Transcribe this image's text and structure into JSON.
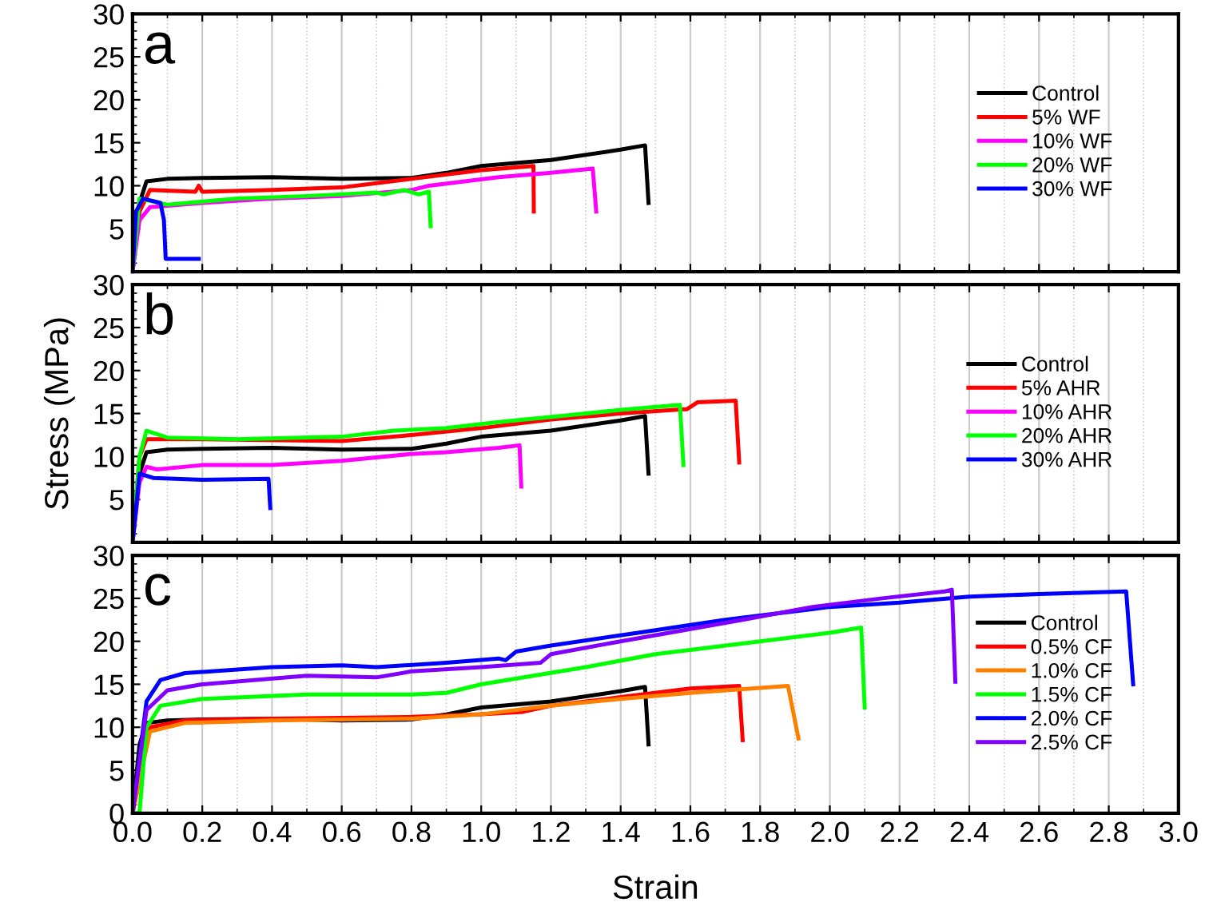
{
  "chart_data": [
    {
      "type": "line",
      "title": "a",
      "xlim": [
        0,
        3.0
      ],
      "ylim": [
        0,
        30
      ],
      "xticks": [
        0.0,
        0.2,
        0.4,
        0.6,
        0.8,
        1.0,
        1.2,
        1.4,
        1.6,
        1.8,
        2.0,
        2.2,
        2.4,
        2.6,
        2.8,
        3.0
      ],
      "yticks": [
        {
          "value": 0,
          "label": null
        },
        5,
        10,
        15,
        20,
        25,
        30
      ],
      "tick_labels": "y",
      "grid": "x",
      "legend": "right",
      "marker": "none",
      "line_style": "solid",
      "series": [
        {
          "name": "Control",
          "color": "#000000",
          "x": [
            0,
            0.02,
            0.04,
            0.1,
            0.2,
            0.4,
            0.6,
            0.8,
            0.9,
            1.0,
            1.2,
            1.4,
            1.47,
            1.48
          ],
          "values": [
            0,
            8,
            10.5,
            10.8,
            10.9,
            11.0,
            10.8,
            10.9,
            11.5,
            12.3,
            13.0,
            14.2,
            14.7,
            8
          ]
        },
        {
          "name": "5% WF",
          "color": "#ff0000",
          "x": [
            0,
            0.02,
            0.05,
            0.18,
            0.19,
            0.2,
            0.4,
            0.6,
            0.7,
            0.8,
            1.0,
            1.15,
            1.151
          ],
          "values": [
            0,
            7,
            9.5,
            9.3,
            10,
            9.3,
            9.5,
            9.8,
            10.3,
            10.8,
            11.8,
            12.3,
            7
          ]
        },
        {
          "name": "10% WF",
          "color": "#ff00ff",
          "x": [
            0,
            0.02,
            0.05,
            0.2,
            0.4,
            0.6,
            0.8,
            0.85,
            1.05,
            1.2,
            1.32,
            1.33
          ],
          "values": [
            0,
            6,
            7.5,
            8.0,
            8.5,
            8.8,
            9.5,
            10.0,
            11.0,
            11.5,
            12.0,
            7
          ]
        },
        {
          "name": "20% WF",
          "color": "#00ff00",
          "x": [
            0,
            0.02,
            0.1,
            0.3,
            0.5,
            0.7,
            0.72,
            0.78,
            0.82,
            0.85,
            0.855
          ],
          "values": [
            0,
            8.5,
            7.8,
            8.5,
            8.8,
            9.2,
            9.0,
            9.5,
            9.0,
            9.3,
            5.3
          ]
        },
        {
          "name": "30% WF",
          "color": "#0000ff",
          "x": [
            0,
            0.01,
            0.03,
            0.08,
            0.09,
            0.095,
            0.19
          ],
          "values": [
            0,
            7,
            8.5,
            8.0,
            6.0,
            1.5,
            1.5
          ]
        }
      ]
    },
    {
      "type": "line",
      "title": "b",
      "ylabel": "Stress (MPa)",
      "xlim": [
        0,
        3.0
      ],
      "ylim": [
        0,
        30
      ],
      "xticks": [
        0.0,
        0.2,
        0.4,
        0.6,
        0.8,
        1.0,
        1.2,
        1.4,
        1.6,
        1.8,
        2.0,
        2.2,
        2.4,
        2.6,
        2.8,
        3.0
      ],
      "yticks": [
        {
          "value": 0,
          "label": null
        },
        5,
        10,
        15,
        20,
        25,
        30
      ],
      "tick_labels": "y",
      "grid": "x",
      "legend": "right",
      "marker": "none",
      "line_style": "solid",
      "series": [
        {
          "name": "Control",
          "color": "#000000",
          "x": [
            0,
            0.02,
            0.04,
            0.1,
            0.2,
            0.4,
            0.6,
            0.8,
            0.9,
            1.0,
            1.2,
            1.4,
            1.47,
            1.48
          ],
          "values": [
            0,
            8,
            10.5,
            10.8,
            10.9,
            11.0,
            10.8,
            10.9,
            11.5,
            12.3,
            13.0,
            14.2,
            14.7,
            8
          ]
        },
        {
          "name": "5% AHR",
          "color": "#ff0000",
          "x": [
            0,
            0.02,
            0.04,
            0.2,
            0.6,
            0.8,
            1.0,
            1.2,
            1.4,
            1.58,
            1.59,
            1.62,
            1.73,
            1.74
          ],
          "values": [
            0,
            10,
            12,
            12,
            11.8,
            12.5,
            13.3,
            14.3,
            15.0,
            15.5,
            15.5,
            16.3,
            16.5,
            9.3
          ]
        },
        {
          "name": "10% AHR",
          "color": "#ff00ff",
          "x": [
            0,
            0.02,
            0.04,
            0.07,
            0.2,
            0.4,
            0.6,
            0.8,
            0.9,
            1.05,
            1.11,
            1.115
          ],
          "values": [
            0,
            7,
            8.8,
            8.5,
            9.0,
            9.0,
            9.5,
            10.3,
            10.5,
            11.0,
            11.3,
            6.5
          ]
        },
        {
          "name": "20% AHR",
          "color": "#00ff00",
          "x": [
            0,
            0.02,
            0.04,
            0.1,
            0.3,
            0.6,
            0.75,
            0.9,
            1.05,
            1.25,
            1.42,
            1.57,
            1.58
          ],
          "values": [
            0,
            10,
            13.0,
            12.2,
            12.0,
            12.3,
            13.0,
            13.3,
            14.0,
            14.8,
            15.5,
            16.0,
            9
          ]
        },
        {
          "name": "30% AHR",
          "color": "#0000ff",
          "x": [
            0,
            0.02,
            0.06,
            0.2,
            0.39,
            0.395
          ],
          "values": [
            0,
            8.0,
            7.5,
            7.3,
            7.4,
            4
          ]
        }
      ]
    },
    {
      "type": "line",
      "title": "c",
      "xlabel": "Strain",
      "xlim": [
        0,
        3.0
      ],
      "ylim": [
        0,
        30
      ],
      "xticks": [
        {
          "value": 0,
          "label": "0.0"
        },
        0.2,
        0.4,
        0.6,
        0.8,
        {
          "value": 1,
          "label": "1.0"
        },
        1.2,
        1.4,
        1.6,
        1.8,
        {
          "value": 2,
          "label": "2.0"
        },
        2.2,
        2.4,
        2.6,
        2.8,
        {
          "value": 3,
          "label": "3.0"
        }
      ],
      "yticks": [
        0,
        5,
        10,
        15,
        20,
        25,
        30
      ],
      "grid": "x",
      "legend": "right",
      "marker": "none",
      "line_style": "solid",
      "series": [
        {
          "name": "Control",
          "color": "#000000",
          "x": [
            0,
            0.02,
            0.04,
            0.1,
            0.2,
            0.4,
            0.6,
            0.8,
            0.9,
            1.0,
            1.2,
            1.4,
            1.47,
            1.48
          ],
          "values": [
            0,
            8,
            10.5,
            10.8,
            10.9,
            11.0,
            10.8,
            10.9,
            11.5,
            12.3,
            13.0,
            14.2,
            14.7,
            8
          ]
        },
        {
          "name": "0.5% CF",
          "color": "#ff0000",
          "x": [
            0,
            0.05,
            0.15,
            0.4,
            0.8,
            1.0,
            1.12,
            1.2,
            1.4,
            1.6,
            1.74,
            1.75
          ],
          "values": [
            0,
            10,
            10.8,
            11.0,
            11.2,
            11.5,
            11.8,
            12.5,
            13.5,
            14.5,
            14.8,
            8.5
          ]
        },
        {
          "name": "1.0% CF",
          "color": "#ff8000",
          "x": [
            0,
            0.05,
            0.15,
            0.4,
            0.8,
            1.0,
            1.2,
            1.4,
            1.6,
            1.88,
            1.91
          ],
          "values": [
            0,
            9.5,
            10.5,
            10.8,
            11.0,
            11.5,
            12.5,
            13.3,
            14.0,
            14.8,
            8.7
          ]
        },
        {
          "name": "1.5% CF",
          "color": "#00ff00",
          "x": [
            0,
            0.02,
            0.04,
            0.08,
            0.2,
            0.5,
            0.8,
            0.9,
            1.0,
            1.15,
            1.3,
            1.5,
            1.8,
            2.0,
            2.09,
            2.1
          ],
          "values": [
            0,
            0,
            10,
            12.5,
            13.3,
            13.8,
            13.8,
            14.0,
            15.0,
            16.0,
            17.0,
            18.5,
            20.0,
            21.0,
            21.6,
            12.3
          ]
        },
        {
          "name": "2.0% CF",
          "color": "#0000ff",
          "x": [
            0,
            0.04,
            0.08,
            0.15,
            0.4,
            0.6,
            0.7,
            0.9,
            1.05,
            1.07,
            1.1,
            1.2,
            1.45,
            1.7,
            2.0,
            2.2,
            2.4,
            2.6,
            2.85,
            2.87
          ],
          "values": [
            0,
            13,
            15.5,
            16.3,
            17.0,
            17.2,
            17.0,
            17.5,
            18.0,
            17.8,
            18.8,
            19.5,
            21.0,
            22.5,
            24.0,
            24.5,
            25.2,
            25.5,
            25.8,
            15
          ]
        },
        {
          "name": "2.5% CF",
          "color": "#8000ff",
          "x": [
            0,
            0.04,
            0.1,
            0.2,
            0.5,
            0.7,
            0.8,
            1.0,
            1.17,
            1.2,
            1.4,
            1.75,
            1.95,
            2.15,
            2.33,
            2.35,
            2.36
          ],
          "values": [
            0,
            12,
            14.3,
            15.0,
            16.0,
            15.8,
            16.5,
            17.0,
            17.5,
            18.5,
            20.0,
            22.5,
            24.0,
            25.0,
            25.8,
            26.0,
            15.3
          ]
        }
      ]
    }
  ]
}
